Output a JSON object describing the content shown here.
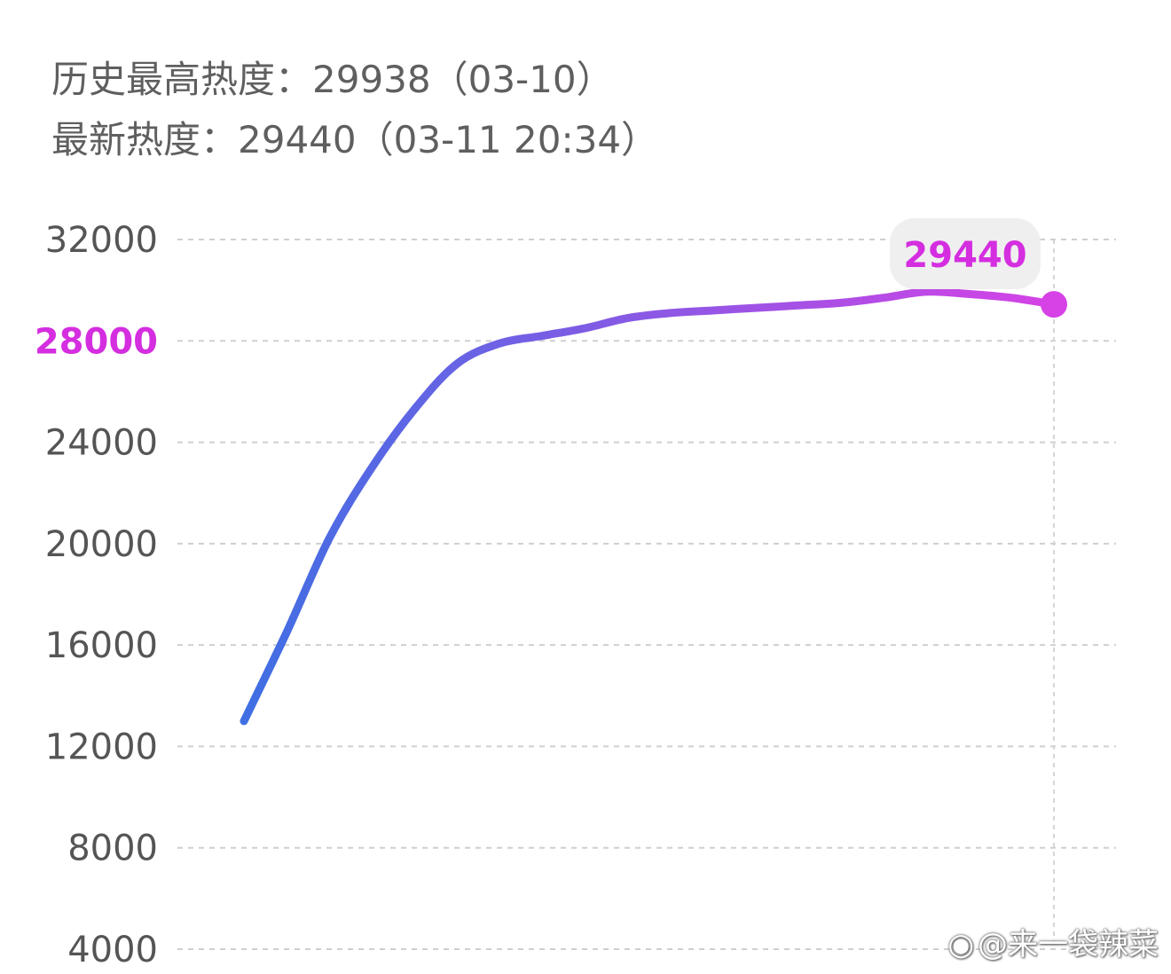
{
  "header": {
    "peak_text": "历史最高热度：29938（03-10）",
    "latest_text": "最新热度：29440（03-11 20:34）"
  },
  "colors": {
    "line_start": "#3f6fe3",
    "line_end": "#d642e6",
    "highlight": "#d42ee0",
    "text": "#5f5f5f"
  },
  "watermark": {
    "icon": "weibo-icon",
    "text": "@来一袋辣菜"
  },
  "chart_data": {
    "type": "line",
    "title": "",
    "xlabel": "",
    "ylabel": "",
    "ylim": [
      4000,
      32000
    ],
    "yticks": [
      32000,
      28000,
      24000,
      20000,
      16000,
      12000,
      8000,
      4000
    ],
    "highlight_tick": 28000,
    "grid": true,
    "callout": {
      "label": "29440",
      "value": 29440
    },
    "series": [
      {
        "values": [
          13000,
          16500,
          20200,
          23000,
          25300,
          27100,
          27900,
          28200,
          28500,
          28900,
          29100,
          29200,
          29300,
          29400,
          29500,
          29700,
          29938,
          29850,
          29700,
          29440
        ]
      }
    ]
  }
}
